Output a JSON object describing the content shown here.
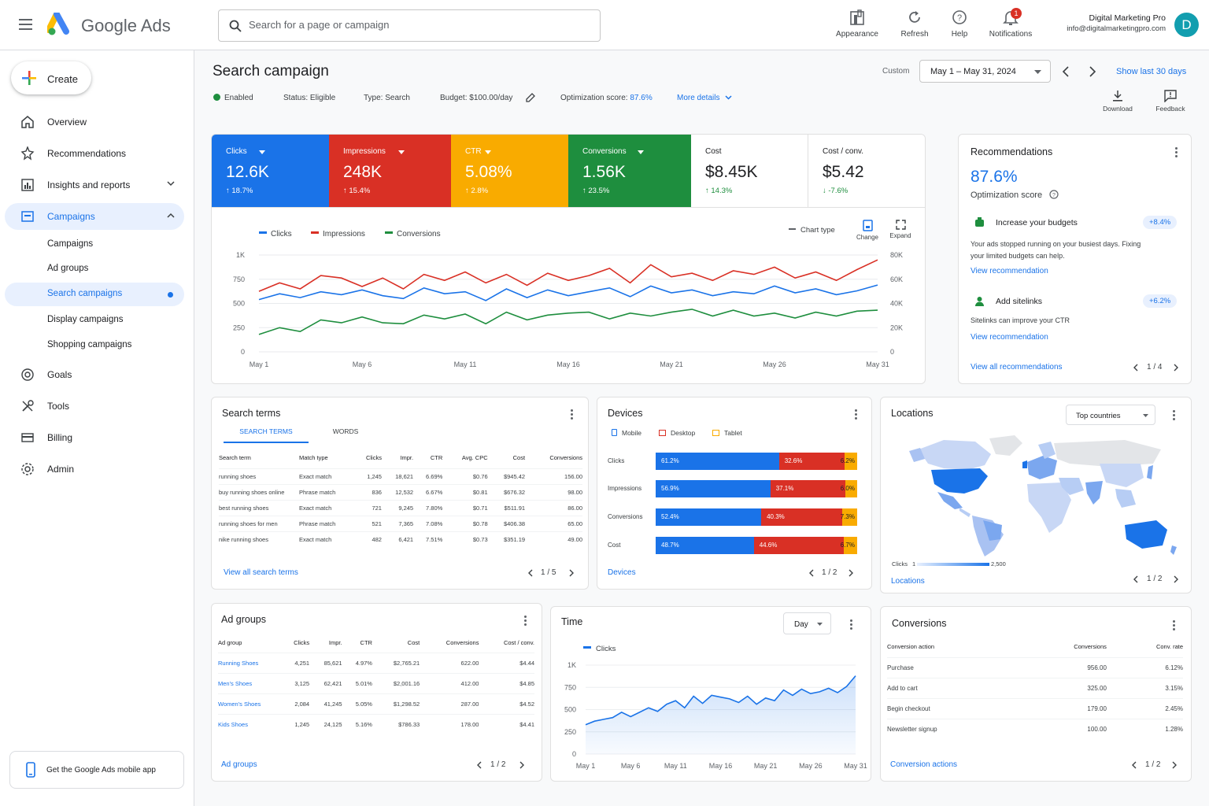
{
  "app": {
    "name": "Google Ads"
  },
  "search": {
    "placeholder": "Search for a page or campaign"
  },
  "top_actions": [
    {
      "label": "Appearance",
      "icon": "appearance-icon"
    },
    {
      "label": "Refresh",
      "icon": "refresh-icon"
    },
    {
      "label": "Help",
      "icon": "help-icon"
    },
    {
      "label": "Notifications",
      "icon": "bell-icon",
      "badge": "1"
    }
  ],
  "account": {
    "name": "Digital Marketing Pro",
    "email": "info@digitalmarketingpro.com",
    "avatar": "D"
  },
  "sidebar": {
    "create": "Create",
    "items": [
      {
        "label": "Overview",
        "icon": "home-icon"
      },
      {
        "label": "Recommendations",
        "icon": "recommendations-icon"
      },
      {
        "label": "Insights and reports",
        "icon": "insights-icon"
      },
      {
        "label": "Campaigns",
        "icon": "campaigns-icon"
      },
      {
        "label": "Goals",
        "icon": "goals-icon"
      },
      {
        "label": "Tools",
        "icon": "tools-icon"
      },
      {
        "label": "Billing",
        "icon": "billing-icon"
      },
      {
        "label": "Admin",
        "icon": "admin-icon"
      }
    ],
    "sub_items": [
      "Campaigns",
      "Ad groups",
      "Search campaigns",
      "Display campaigns",
      "Shopping campaigns"
    ],
    "mobile_app": "Get the Google Ads mobile app"
  },
  "page": {
    "title": "Search campaign",
    "enabled": "Enabled",
    "status_label": "Status:",
    "status": "Eligible",
    "type_label": "Type:",
    "type": "Search",
    "budget_label": "Budget:",
    "budget": "$100.00/day",
    "optimization_label": "Optimization score:",
    "optimization": "87.6%",
    "more_details": "More details",
    "date_label": "Custom",
    "date_range": "May 1 – May 31, 2024",
    "show_last": "Show last 30 days",
    "download": "Download",
    "feedback": "Feedback"
  },
  "metrics": [
    {
      "name": "Clicks",
      "value": "12.6K",
      "delta": "18.7%",
      "color": "#1a73e8",
      "dropdown": true
    },
    {
      "name": "Impressions",
      "value": "248K",
      "delta": "15.4%",
      "color": "#d93025",
      "dropdown": true
    },
    {
      "name": "CTR",
      "value": "5.08%",
      "delta": "2.8%",
      "color": "#f9ab00",
      "dropdown": true
    },
    {
      "name": "Conversions",
      "value": "1.56K",
      "delta": "23.5%",
      "color": "#1e8e3e",
      "dropdown": true
    },
    {
      "name": "Cost",
      "value": "$8.45K",
      "delta": "14.3%",
      "color": "#ffffff",
      "dropdown": false
    },
    {
      "name": "Cost / conv.",
      "value": "$5.42",
      "delta": "-7.6%",
      "color": "#ffffff",
      "dropdown": false
    }
  ],
  "main_chart": {
    "legend": [
      "Clicks",
      "Impressions",
      "Conversions"
    ],
    "chart_type": "Chart type",
    "change": "Change",
    "expand": "Expand"
  },
  "chart_data": [
    {
      "type": "line",
      "x": [
        "May 1",
        "May 2",
        "May 3",
        "May 4",
        "May 5",
        "May 6",
        "May 7",
        "May 8",
        "May 9",
        "May 10",
        "May 11",
        "May 12",
        "May 13",
        "May 14",
        "May 15",
        "May 16",
        "May 17",
        "May 18",
        "May 19",
        "May 20",
        "May 21",
        "May 22",
        "May 23",
        "May 24",
        "May 25",
        "May 26",
        "May 27",
        "May 28",
        "May 29",
        "May 30",
        "May 31"
      ],
      "x_ticks": [
        "May 1",
        "May 6",
        "May 11",
        "May 16",
        "May 21",
        "May 26",
        "May 31"
      ],
      "ylim_left": [
        0,
        1000
      ],
      "yticks_left": [
        "1K",
        "750",
        "500",
        "250",
        "0"
      ],
      "ylim_right": [
        0,
        80000
      ],
      "yticks_right": [
        "80K",
        "60K",
        "40K",
        "20K",
        "0"
      ],
      "series": [
        {
          "name": "Impressions",
          "color": "#d93025",
          "axis": "right",
          "values": [
            50000,
            57000,
            52000,
            63000,
            61000,
            54000,
            61000,
            52000,
            64000,
            59000,
            66000,
            57000,
            64000,
            55000,
            65000,
            59000,
            63000,
            69000,
            57000,
            72000,
            62000,
            65000,
            59000,
            67000,
            64000,
            70000,
            61000,
            66000,
            59000,
            68000,
            76000
          ]
        },
        {
          "name": "Clicks",
          "color": "#1a73e8",
          "axis": "left",
          "values": [
            540,
            600,
            560,
            620,
            590,
            640,
            580,
            550,
            660,
            600,
            620,
            530,
            650,
            560,
            640,
            580,
            620,
            660,
            570,
            680,
            610,
            640,
            580,
            620,
            600,
            680,
            610,
            650,
            590,
            630,
            690
          ]
        },
        {
          "name": "Conversions",
          "color": "#1e8e3e",
          "axis": "left",
          "values": [
            180,
            250,
            210,
            330,
            300,
            360,
            300,
            290,
            380,
            340,
            390,
            290,
            410,
            330,
            380,
            400,
            410,
            340,
            400,
            370,
            410,
            440,
            370,
            430,
            370,
            400,
            350,
            410,
            370,
            420,
            430
          ]
        }
      ]
    },
    {
      "type": "area",
      "x": [
        "May 1",
        "May 2",
        "May 3",
        "May 4",
        "May 5",
        "May 6",
        "May 7",
        "May 8",
        "May 9",
        "May 10",
        "May 11",
        "May 12",
        "May 13",
        "May 14",
        "May 15",
        "May 16",
        "May 17",
        "May 18",
        "May 19",
        "May 20",
        "May 21",
        "May 22",
        "May 23",
        "May 24",
        "May 25",
        "May 26",
        "May 27",
        "May 28",
        "May 29",
        "May 30",
        "May 31"
      ],
      "x_ticks": [
        "May 1",
        "May 6",
        "May 11",
        "May 16",
        "May 21",
        "May 26",
        "May 31"
      ],
      "ylim": [
        0,
        1000
      ],
      "yticks": [
        "1K",
        "750",
        "500",
        "250",
        "0"
      ],
      "series": [
        {
          "name": "Clicks",
          "color": "#1a73e8",
          "values": [
            330,
            370,
            390,
            410,
            470,
            420,
            470,
            520,
            480,
            560,
            600,
            520,
            650,
            570,
            660,
            640,
            620,
            580,
            650,
            560,
            630,
            600,
            720,
            660,
            730,
            680,
            700,
            740,
            690,
            760,
            880
          ]
        }
      ]
    }
  ],
  "recommendations": {
    "title": "Recommendations",
    "score": "87.6%",
    "score_label": "Optimization score",
    "items": [
      {
        "title": "Increase your budgets",
        "badge": "+8.4%",
        "text1": "Your ads stopped running on your busiest days. Fixing",
        "text2": "your limited budgets can help.",
        "link": "View recommendation"
      },
      {
        "title": "Add sitelinks",
        "badge": "+6.2%",
        "text1": "Sitelinks can improve your CTR",
        "text2": "",
        "link": "View recommendation"
      }
    ],
    "view_all": "View all recommendations",
    "pager": "1 / 4"
  },
  "search_terms": {
    "title": "Search terms",
    "tabs": [
      "SEARCH TERMS",
      "WORDS"
    ],
    "columns": [
      "Search term",
      "Match type",
      "Clicks",
      "Impr.",
      "CTR",
      "Avg. CPC",
      "Cost",
      "Conversions"
    ],
    "rows": [
      [
        "running shoes",
        "Exact match",
        "1,245",
        "18,621",
        "6.69%",
        "$0.76",
        "$945.42",
        "156.00"
      ],
      [
        "buy running shoes online",
        "Phrase match",
        "836",
        "12,532",
        "6.67%",
        "$0.81",
        "$676.32",
        "98.00"
      ],
      [
        "best running shoes",
        "Exact match",
        "721",
        "9,245",
        "7.80%",
        "$0.71",
        "$511.91",
        "86.00"
      ],
      [
        "running shoes for men",
        "Phrase match",
        "521",
        "7,365",
        "7.08%",
        "$0.78",
        "$406.38",
        "65.00"
      ],
      [
        "nike running shoes",
        "Exact match",
        "482",
        "6,421",
        "7.51%",
        "$0.73",
        "$351.19",
        "49.00"
      ]
    ],
    "link": "View all search terms",
    "pager": "1 / 5"
  },
  "devices": {
    "title": "Devices",
    "legend": [
      {
        "name": "Mobile",
        "color": "#1a73e8"
      },
      {
        "name": "Desktop",
        "color": "#d93025"
      },
      {
        "name": "Tablet",
        "color": "#f9ab00"
      }
    ],
    "rows": [
      {
        "label": "Clicks",
        "values": [
          61.2,
          32.6,
          6.2
        ],
        "labels": [
          "61.2%",
          "32.6%",
          "6.2%"
        ]
      },
      {
        "label": "Impressions",
        "values": [
          56.9,
          37.1,
          6.0
        ],
        "labels": [
          "56.9%",
          "37.1%",
          "6.0%"
        ]
      },
      {
        "label": "Conversions",
        "values": [
          52.4,
          40.3,
          7.3
        ],
        "labels": [
          "52.4%",
          "40.3%",
          "7.3%"
        ]
      },
      {
        "label": "Cost",
        "values": [
          48.7,
          44.6,
          6.7
        ],
        "labels": [
          "48.7%",
          "44.6%",
          "6.7%"
        ]
      }
    ],
    "link": "Devices",
    "pager": "1 / 2"
  },
  "locations": {
    "title": "Locations",
    "dropdown": "Top countries",
    "scale_label": "Clicks",
    "scale_min": "1",
    "scale_max": "2,500",
    "link": "Locations",
    "pager": "1 / 2"
  },
  "ad_groups": {
    "title": "Ad groups",
    "columns": [
      "Ad group",
      "Clicks",
      "Impr.",
      "CTR",
      "Cost",
      "Conversions",
      "Cost / conv."
    ],
    "rows": [
      [
        "Running Shoes",
        "4,251",
        "85,621",
        "4.97%",
        "$2,765.21",
        "622.00",
        "$4.44"
      ],
      [
        "Men's Shoes",
        "3,125",
        "62,421",
        "5.01%",
        "$2,001.16",
        "412.00",
        "$4.85"
      ],
      [
        "Women's Shoes",
        "2,084",
        "41,245",
        "5.05%",
        "$1,298.52",
        "287.00",
        "$4.52"
      ],
      [
        "Kids Shoes",
        "1,245",
        "24,125",
        "5.16%",
        "$786.33",
        "178.00",
        "$4.41"
      ]
    ],
    "link": "Ad groups",
    "pager": "1 / 2"
  },
  "time": {
    "title": "Time",
    "dropdown": "Day",
    "legend": "Clicks"
  },
  "conversions": {
    "title": "Conversions",
    "columns": [
      "Conversion action",
      "Conversions",
      "Conv. rate"
    ],
    "rows": [
      [
        "Purchase",
        "956.00",
        "6.12%"
      ],
      [
        "Add to cart",
        "325.00",
        "3.15%"
      ],
      [
        "Begin checkout",
        "179.00",
        "2.45%"
      ],
      [
        "Newsletter signup",
        "100.00",
        "1.28%"
      ]
    ],
    "link": "Conversion actions",
    "pager": "1 / 2"
  }
}
